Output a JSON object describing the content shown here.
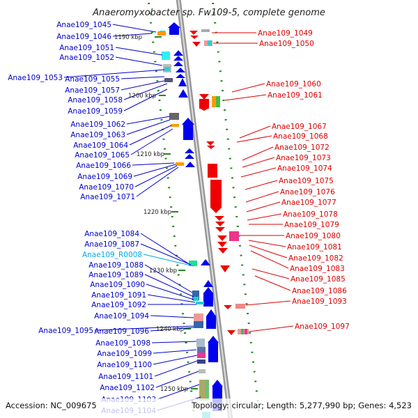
{
  "title": "Anaeromyxobacter sp. Fw109-5, complete genome",
  "footer": {
    "accession": "Accession: NC_009675",
    "summary": "Topology: circular; Length: 5,277,990 bp; Genes: 4,523"
  },
  "colors": {
    "forward_label": "#0000cc",
    "reverse_label": "#dd0000",
    "rna_label": "#00aaee",
    "forward_gene": "#0000ee",
    "reverse_gene": "#ee0000",
    "backbone": "#999999",
    "tick": "#228822"
  },
  "kbp_marks": [
    {
      "label": "1190 kbp"
    },
    {
      "label": "1200 kbp"
    },
    {
      "label": "1210 kbp"
    },
    {
      "label": "1220 kbp"
    },
    {
      "label": "1230 kbp"
    },
    {
      "label": "1240 kbp"
    },
    {
      "label": "1250 kbp"
    }
  ],
  "left_labels": [
    {
      "text": "Anae109_1045",
      "type": "gene"
    },
    {
      "text": "Anae109_1046",
      "type": "gene"
    },
    {
      "text": "Anae109_1051",
      "type": "gene"
    },
    {
      "text": "Anae109_1052",
      "type": "gene"
    },
    {
      "text": "Anae109_1053",
      "type": "gene"
    },
    {
      "text": "Anae109_1055",
      "type": "gene"
    },
    {
      "text": "Anae109_1057",
      "type": "gene"
    },
    {
      "text": "Anae109_1058",
      "type": "gene"
    },
    {
      "text": "Anae109_1059",
      "type": "gene"
    },
    {
      "text": "Anae109_1062",
      "type": "gene"
    },
    {
      "text": "Anae109_1063",
      "type": "gene"
    },
    {
      "text": "Anae109_1064",
      "type": "gene"
    },
    {
      "text": "Anae109_1065",
      "type": "gene"
    },
    {
      "text": "Anae109_1066",
      "type": "gene"
    },
    {
      "text": "Anae109_1069",
      "type": "gene"
    },
    {
      "text": "Anae109_1070",
      "type": "gene"
    },
    {
      "text": "Anae109_1071",
      "type": "gene"
    },
    {
      "text": "Anae109_1084",
      "type": "gene"
    },
    {
      "text": "Anae109_1087",
      "type": "gene"
    },
    {
      "text": "Anae109_R0008",
      "type": "rna"
    },
    {
      "text": "Anae109_1088",
      "type": "gene"
    },
    {
      "text": "Anae109_1089",
      "type": "gene"
    },
    {
      "text": "Anae109_1090",
      "type": "gene"
    },
    {
      "text": "Anae109_1091",
      "type": "gene"
    },
    {
      "text": "Anae109_1092",
      "type": "gene"
    },
    {
      "text": "Anae109_1094",
      "type": "gene"
    },
    {
      "text": "Anae109_1095",
      "type": "gene"
    },
    {
      "text": "Anae109_1096",
      "type": "gene"
    },
    {
      "text": "Anae109_1098",
      "type": "gene"
    },
    {
      "text": "Anae109_1099",
      "type": "gene"
    },
    {
      "text": "Anae109_1100",
      "type": "gene"
    },
    {
      "text": "Anae109_1101",
      "type": "gene"
    },
    {
      "text": "Anae109_1102",
      "type": "gene"
    },
    {
      "text": "Anae109_1103",
      "type": "gene"
    },
    {
      "text": "Anae109_1104",
      "type": "gene"
    }
  ],
  "right_labels": [
    {
      "text": "Anae109_1049"
    },
    {
      "text": "Anae109_1050"
    },
    {
      "text": "Anae109_1060"
    },
    {
      "text": "Anae109_1061"
    },
    {
      "text": "Anae109_1067"
    },
    {
      "text": "Anae109_1068"
    },
    {
      "text": "Anae109_1072"
    },
    {
      "text": "Anae109_1073"
    },
    {
      "text": "Anae109_1074"
    },
    {
      "text": "Anae109_1075"
    },
    {
      "text": "Anae109_1076"
    },
    {
      "text": "Anae109_1077"
    },
    {
      "text": "Anae109_1078"
    },
    {
      "text": "Anae109_1079"
    },
    {
      "text": "Anae109_1080"
    },
    {
      "text": "Anae109_1081"
    },
    {
      "text": "Anae109_1082"
    },
    {
      "text": "Anae109_1083"
    },
    {
      "text": "Anae109_1085"
    },
    {
      "text": "Anae109_1086"
    },
    {
      "text": "Anae109_1093"
    },
    {
      "text": "Anae109_1097"
    }
  ]
}
